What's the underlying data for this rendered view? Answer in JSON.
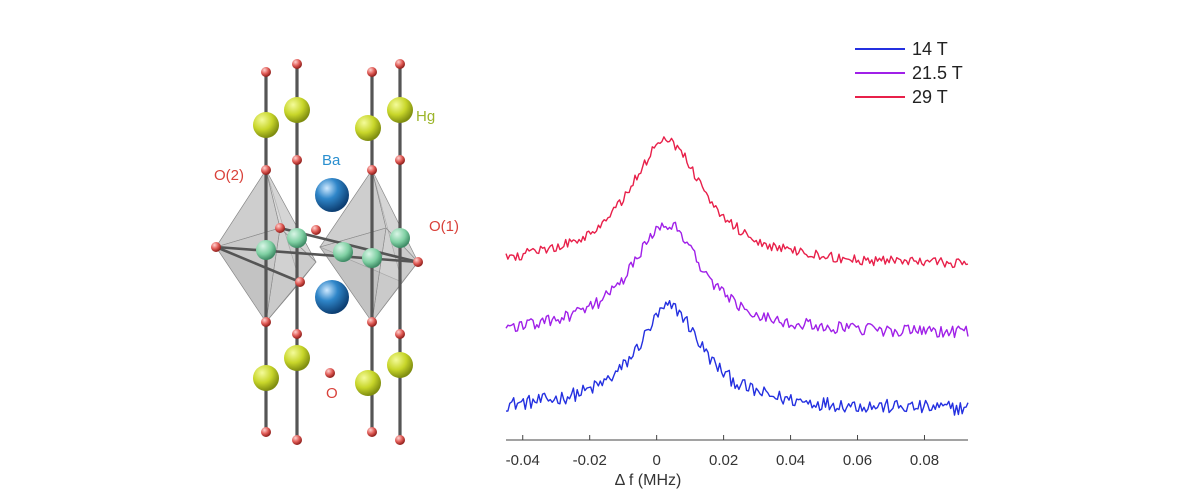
{
  "crystal": {
    "labels": {
      "hg": "Hg",
      "ba": "Ba",
      "o2": "O(2)",
      "o1": "O(1)",
      "o": "O"
    },
    "colors": {
      "hg": "#c8d62a",
      "ba": "#2f86c9",
      "cu": "#7fd0a3",
      "o": "#e05a55",
      "ba_label": "#2a8fcf",
      "hg_label": "#9cb52a",
      "o_label": "#d9413a"
    }
  },
  "chart_data": {
    "type": "line",
    "xlabel": "Δ f (MHz)",
    "xlim": [
      -0.045,
      0.093
    ],
    "xticks": [
      -0.04,
      -0.02,
      0,
      0.02,
      0.04,
      0.06,
      0.08
    ],
    "xtick_labels": [
      "-0.04",
      "-0.02",
      "0",
      "0.02",
      "0.04",
      "0.06",
      "0.08"
    ],
    "legend_position": "top-right",
    "series": [
      {
        "name": "14 T",
        "color": "#2430e0",
        "offset": 0.0,
        "peak": 1.0,
        "center": 0.004,
        "sigma": 0.012,
        "noise": 0.07
      },
      {
        "name": "21.5 T",
        "color": "#a020e8",
        "offset": 0.73,
        "peak": 1.08,
        "center": 0.003,
        "sigma": 0.013,
        "noise": 0.06
      },
      {
        "name": "29 T",
        "color": "#e8204a",
        "offset": 1.39,
        "peak": 1.22,
        "center": 0.003,
        "sigma": 0.014,
        "noise": 0.05
      }
    ]
  }
}
